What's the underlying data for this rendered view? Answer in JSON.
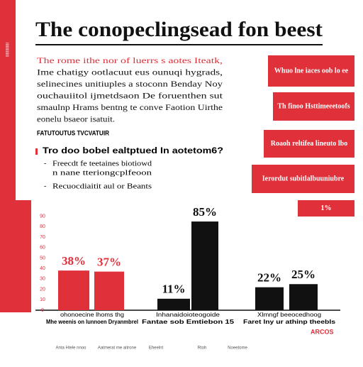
{
  "header": {
    "title": "The conopeclingsead fon beest",
    "sidebar_text": "IIIIIIIIIIII"
  },
  "intro": {
    "lines": [
      "The rome ithe nor of luerrs s aotes Iteatk,",
      "Ime chatigy ootlacuut eus ounuqi hygrads,",
      "selinecines unitiuples a stoconn Benday Noy",
      "ouchauiitol ijmetdsaon De foruenthen sut",
      "smaulnp Hrams bentng te conve Faotion Uirthe",
      "eonelu bsaeor isatuit."
    ]
  },
  "subhead": "FATUTOUTUS TVCVATUIR",
  "question": "Tro doo bobel ealtptued In aotetom6?",
  "bullets": [
    "Freecdt fe teetaines biotiowd",
    "n nane tteriongcplfeoon",
    "Recuocdiaitit aul or Beants"
  ],
  "callouts": [
    "Whuo lne iaces oob lo ee",
    "Th finoo Hsttimeeetoofs",
    "Roaoh reltifea lineuto lbo",
    "Ierordut subitlalbuuniubre",
    "1%"
  ],
  "chart_data": {
    "type": "bar",
    "values": [
      38,
      37,
      11,
      85,
      22,
      25
    ],
    "value_labels": [
      "38%",
      "37%",
      "11%",
      "85%",
      "22%",
      "25%"
    ],
    "colors": [
      "#e0303a",
      "#e0303a",
      "#111111",
      "#111111",
      "#111111",
      "#111111"
    ],
    "value_label_colors": [
      "#e0303a",
      "#e0303a",
      "#111111",
      "#111111",
      "#111111",
      "#111111"
    ],
    "group_labels": [
      [
        "ohonoecine lhoms thg",
        "Mhe weenis on lunnoen Dryanmbrel"
      ],
      [
        "Inhanaidoioteogoide",
        "Fantae sob Emtiebon 15"
      ],
      [
        "Xlmngf beeocedhoog",
        "Faret lny ur athinp theebls"
      ]
    ],
    "ylim": [
      0,
      100
    ],
    "yticks": [
      0,
      10,
      20,
      30,
      40,
      50,
      60,
      70,
      80,
      90
    ]
  },
  "footer": {
    "items": [
      "Anta Htele nnoo",
      "Aatmerat me aitrone",
      "Eheelnt",
      "Rtoh",
      "Noeetome"
    ],
    "brand": "ARCOS"
  }
}
